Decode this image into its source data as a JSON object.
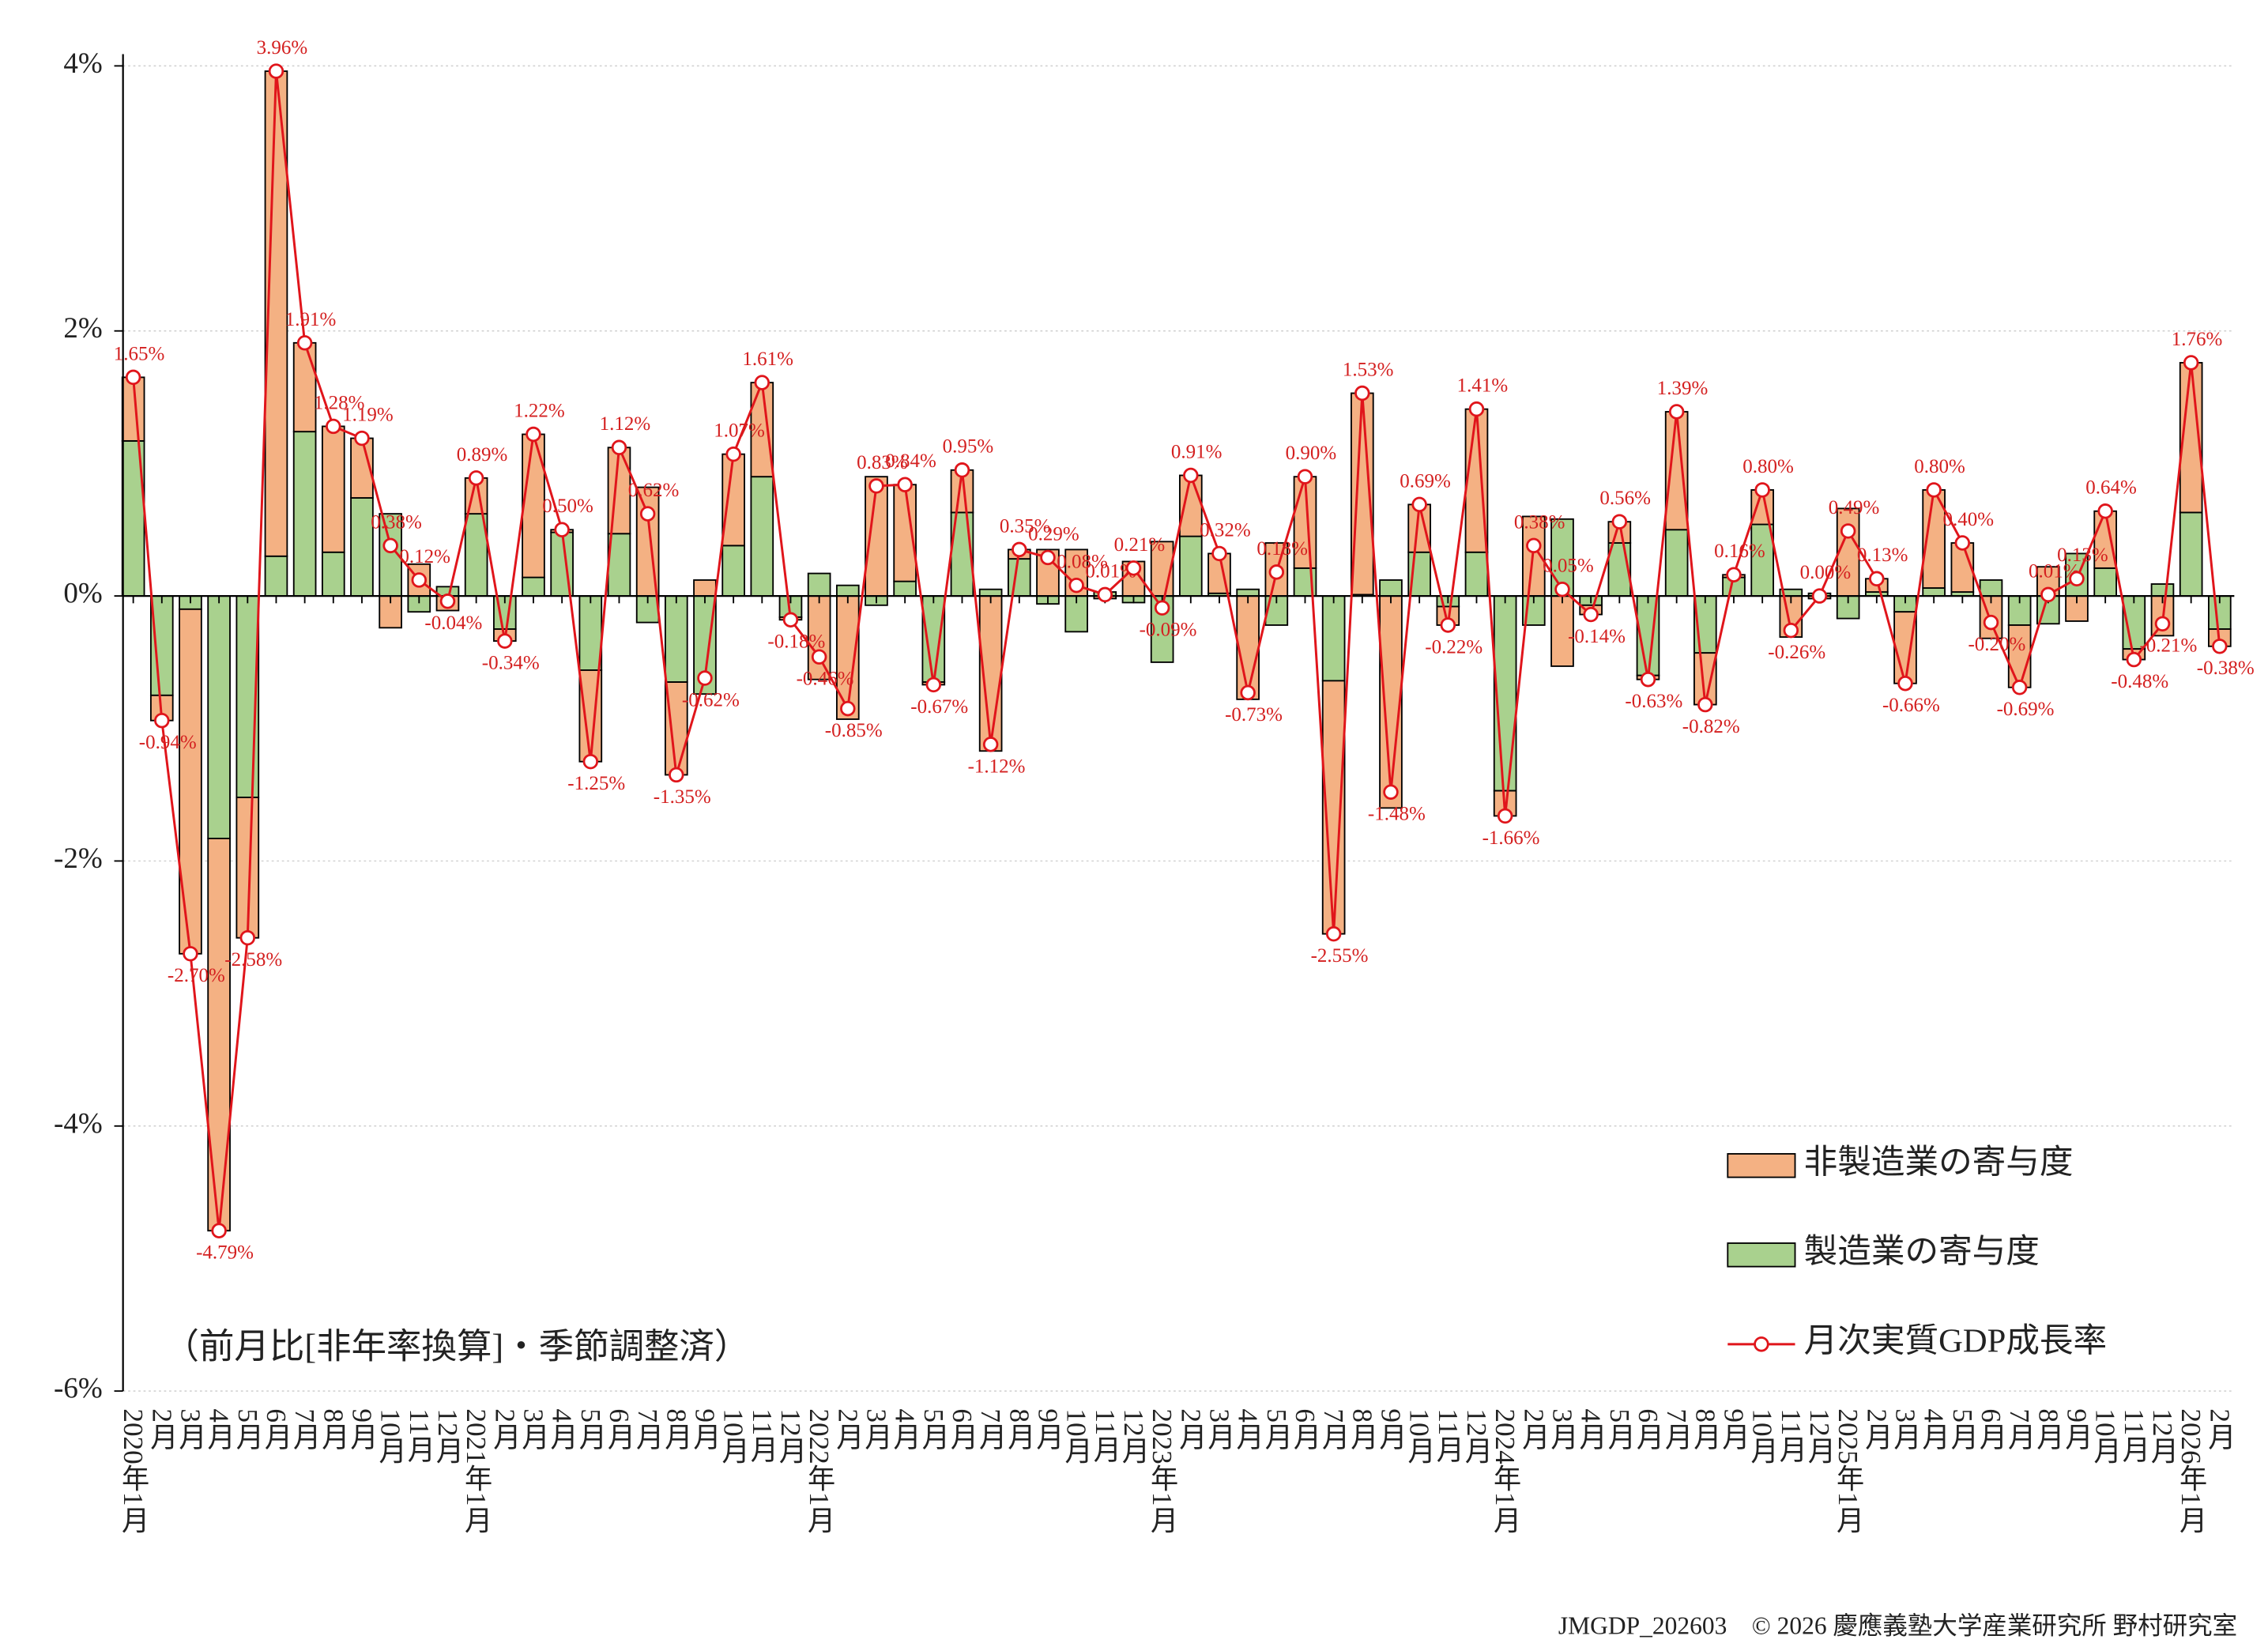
{
  "chart_data": {
    "type": "bar",
    "note": "（前月比[非年率換算]・季節調整済）",
    "source": "JMGDP_202603　© 2026 慶應義塾大学産業研究所 野村研究室",
    "categories": [
      "2020年1月",
      "2月",
      "3月",
      "4月",
      "5月",
      "6月",
      "7月",
      "8月",
      "9月",
      "10月",
      "11月",
      "12月",
      "2021年1月",
      "2月",
      "3月",
      "4月",
      "5月",
      "6月",
      "7月",
      "8月",
      "9月",
      "10月",
      "11月",
      "12月",
      "2022年1月",
      "2月",
      "3月",
      "4月",
      "5月",
      "6月",
      "7月",
      "8月",
      "9月",
      "10月",
      "11月",
      "12月",
      "2023年1月",
      "2月",
      "3月",
      "4月",
      "5月",
      "6月",
      "7月",
      "8月",
      "9月",
      "10月",
      "11月",
      "12月",
      "2024年1月",
      "2月",
      "3月",
      "4月",
      "5月",
      "6月",
      "7月",
      "8月",
      "9月",
      "10月",
      "11月",
      "12月",
      "2025年1月",
      "2月",
      "3月",
      "4月",
      "5月",
      "6月",
      "7月",
      "8月",
      "9月",
      "10月",
      "11月",
      "12月",
      "2026年1月",
      "2月"
    ],
    "series": [
      {
        "name": "非製造業の寄与度",
        "color": "#f4b183",
        "values": [
          0.48,
          -0.19,
          -2.6,
          -2.96,
          -1.06,
          3.66,
          0.67,
          0.95,
          0.45,
          -0.24,
          0.24,
          -0.11,
          0.27,
          -0.09,
          1.08,
          0.02,
          -0.69,
          0.65,
          0.82,
          -0.7,
          0.12,
          0.69,
          0.71,
          -0.02,
          -0.63,
          -0.93,
          0.9,
          0.73,
          -0.02,
          0.32,
          -1.17,
          0.07,
          0.35,
          0.35,
          -0.02,
          0.26,
          0.41,
          0.46,
          0.3,
          -0.78,
          0.4,
          0.69,
          -1.91,
          1.52,
          -1.6,
          0.36,
          -0.14,
          1.08,
          -0.19,
          0.6,
          -0.53,
          -0.07,
          0.16,
          -0.03,
          0.89,
          -0.39,
          0.02,
          0.26,
          -0.31,
          -0.02,
          0.66,
          0.1,
          -0.54,
          0.74,
          0.37,
          -0.32,
          -0.47,
          0.22,
          -0.19,
          0.43,
          -0.08,
          -0.3,
          1.13,
          -0.13
        ]
      },
      {
        "name": "製造業の寄与度",
        "color": "#a9d18e",
        "values": [
          1.17,
          -0.75,
          -0.1,
          -1.83,
          -1.52,
          0.3,
          1.24,
          0.33,
          0.74,
          0.62,
          -0.12,
          0.07,
          0.62,
          -0.25,
          0.14,
          0.48,
          -0.56,
          0.47,
          -0.2,
          -0.65,
          -0.74,
          0.38,
          0.9,
          -0.16,
          0.17,
          0.08,
          -0.07,
          0.11,
          -0.65,
          0.63,
          0.05,
          0.28,
          -0.06,
          -0.27,
          0.03,
          -0.05,
          -0.5,
          0.45,
          0.02,
          0.05,
          -0.22,
          0.21,
          -0.64,
          0.01,
          0.12,
          0.33,
          -0.08,
          0.33,
          -1.47,
          -0.22,
          0.58,
          -0.07,
          0.4,
          -0.6,
          0.5,
          -0.43,
          0.14,
          0.54,
          0.05,
          0.02,
          -0.17,
          0.03,
          -0.12,
          0.06,
          0.03,
          0.12,
          -0.22,
          -0.21,
          0.32,
          0.21,
          -0.4,
          0.09,
          0.63,
          -0.25
        ]
      },
      {
        "name": "月次実質GDP成長率",
        "type": "line",
        "color": "#e0151b",
        "values": [
          1.65,
          -0.94,
          -2.7,
          -4.79,
          -2.58,
          3.96,
          1.91,
          1.28,
          1.19,
          0.38,
          0.12,
          -0.04,
          0.89,
          -0.34,
          1.22,
          0.5,
          -1.25,
          1.12,
          0.62,
          -1.35,
          -0.62,
          1.07,
          1.61,
          -0.18,
          -0.46,
          -0.85,
          0.83,
          0.84,
          -0.67,
          0.95,
          -1.12,
          0.35,
          0.29,
          0.08,
          0.01,
          0.21,
          -0.09,
          0.91,
          0.32,
          -0.73,
          0.18,
          0.9,
          -2.55,
          1.53,
          -1.48,
          0.69,
          -0.22,
          1.41,
          -1.66,
          0.38,
          0.05,
          -0.14,
          0.56,
          -0.63,
          1.39,
          -0.82,
          0.16,
          0.8,
          -0.26,
          0.0,
          0.49,
          0.13,
          -0.66,
          0.8,
          0.4,
          -0.2,
          -0.69,
          0.01,
          0.13,
          0.64,
          -0.48,
          -0.21,
          1.76,
          -0.38
        ],
        "value_labels": [
          "1.65%",
          "-0.94%",
          "-2.70%",
          "-4.79%",
          "-2.58%",
          "3.96%",
          "1.91%",
          "1.28%",
          "1.19%",
          "0.38%",
          "0.12%",
          "-0.04%",
          "0.89%",
          "-0.34%",
          "1.22%",
          "0.50%",
          "-1.25%",
          "1.12%",
          "0.62%",
          "-1.35%",
          "-0.62%",
          "1.07%",
          "1.61%",
          "-0.18%",
          "-0.46%",
          "-0.85%",
          "0.83%",
          "0.84%",
          "-0.67%",
          "0.95%",
          "-1.12%",
          "0.35%",
          "0.29%",
          "0.08%",
          "0.01%",
          "0.21%",
          "-0.09%",
          "0.91%",
          "0.32%",
          "-0.73%",
          "0.18%",
          "0.90%",
          "-2.55%",
          "1.53%",
          "-1.48%",
          "0.69%",
          "-0.22%",
          "1.41%",
          "-1.66%",
          "0.38%",
          "0.05%",
          "-0.14%",
          "0.56%",
          "-0.63%",
          "1.39%",
          "-0.82%",
          "0.16%",
          "0.80%",
          "-0.26%",
          "0.00%",
          "0.49%",
          "0.13%",
          "-0.66%",
          "0.80%",
          "0.40%",
          "-0.20%",
          "-0.69%",
          "0.01%",
          "0.13%",
          "0.64%",
          "-0.48%",
          "-0.21%",
          "1.76%",
          "-0.38%"
        ]
      }
    ],
    "ylim": [
      -6,
      4
    ],
    "yticks": [
      {
        "value": 4,
        "label": "4%"
      },
      {
        "value": 2,
        "label": "2%"
      },
      {
        "value": 0,
        "label": "0%"
      },
      {
        "value": -2,
        "label": "-2%"
      },
      {
        "value": -4,
        "label": "-4%"
      },
      {
        "value": -6,
        "label": "-6%"
      }
    ],
    "grid": true,
    "legend": "lower right"
  }
}
